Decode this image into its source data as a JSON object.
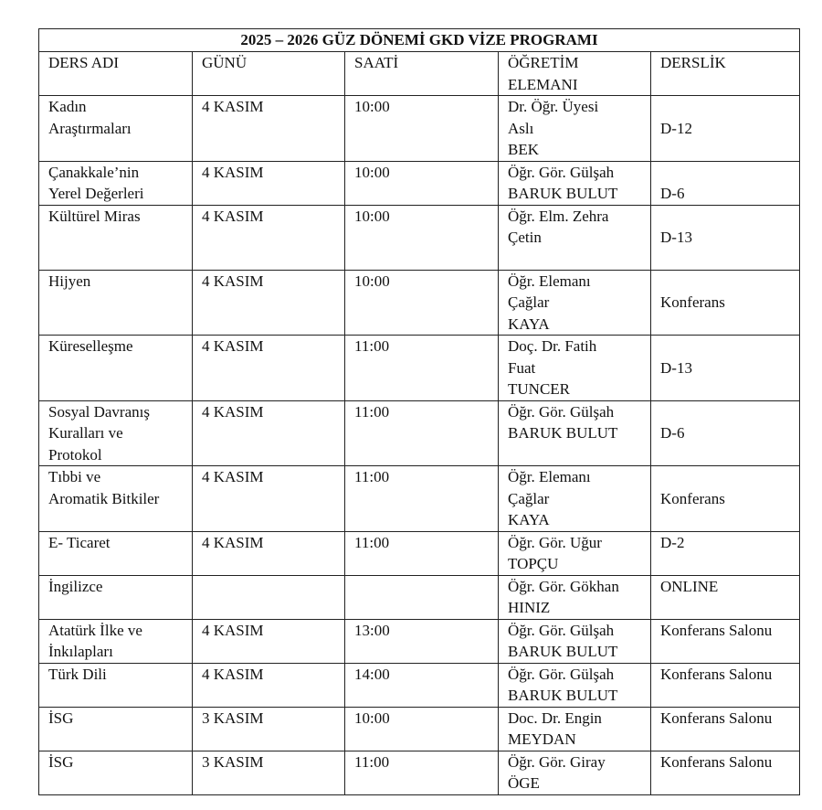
{
  "title": "2025 – 2026 GÜZ DÖNEMİ GKD VİZE PROGRAMI",
  "headers": [
    [
      "DERS ADI"
    ],
    [
      "GÜNÜ"
    ],
    [
      "SAATİ"
    ],
    [
      "ÖĞRETİM",
      "ELEMANI"
    ],
    [
      "DERSLİK"
    ]
  ],
  "rows": [
    {
      "ders": [
        "Kadın",
        "Araştırmaları"
      ],
      "gunu": "4 KASIM",
      "saati": "10:00",
      "ogretim": [
        "Dr. Öğr. Üyesi",
        "Aslı",
        "BEK"
      ],
      "derslik": "D-12"
    },
    {
      "ders": [
        "Çanakkale’nin",
        "Yerel Değerleri"
      ],
      "gunu": "4 KASIM",
      "saati": "10:00",
      "ogretim": [
        "Öğr. Gör. Gülşah",
        "BARUK BULUT"
      ],
      "derslik": "D-6"
    },
    {
      "ders": [
        "Kültürel Miras"
      ],
      "gunu": "4 KASIM",
      "saati": "10:00",
      "ogretim": [
        "Öğr. Elm. Zehra",
        "Çetin"
      ],
      "derslik": "D-13"
    },
    {
      "ders": [
        "Hijyen"
      ],
      "gunu": "4 KASIM",
      "saati": "10:00",
      "ogretim": [
        "Öğr. Elemanı",
        "Çağlar",
        "KAYA"
      ],
      "derslik": "Konferans"
    },
    {
      "ders": [
        "Küreselleşme"
      ],
      "gunu": "4 KASIM",
      "saati": "11:00",
      "ogretim": [
        "Doç. Dr. Fatih",
        "Fuat",
        "TUNCER"
      ],
      "derslik": "D-13"
    },
    {
      "ders": [
        "Sosyal Davranış",
        "Kuralları ve",
        "Protokol"
      ],
      "gunu": "4 KASIM",
      "saati": "11:00",
      "ogretim": [
        "Öğr. Gör. Gülşah",
        "BARUK BULUT"
      ],
      "derslik": "D-6"
    },
    {
      "ders": [
        "Tıbbi ve",
        "Aromatik Bitkiler"
      ],
      "gunu": "4 KASIM",
      "saati": "11:00",
      "ogretim": [
        "Öğr. Elemanı",
        "Çağlar",
        "KAYA"
      ],
      "derslik": "Konferans"
    },
    {
      "ders": [
        "E- Ticaret"
      ],
      "gunu": "4 KASIM",
      "saati": "11:00",
      "ogretim": [
        "Öğr. Gör. Uğur",
        "TOPÇU"
      ],
      "derslik": "D-2"
    },
    {
      "ders": [
        "İngilizce"
      ],
      "gunu": "",
      "saati": "",
      "ogretim": [
        "Öğr. Gör. Gökhan",
        "HINIZ"
      ],
      "derslik": "ONLINE"
    },
    {
      "ders": [
        "Atatürk İlke ve",
        "İnkılapları"
      ],
      "gunu": "4 KASIM",
      "saati": "13:00",
      "ogretim": [
        "Öğr. Gör. Gülşah",
        "BARUK BULUT"
      ],
      "derslik": "Konferans Salonu"
    },
    {
      "ders": [
        "Türk Dili"
      ],
      "gunu": "4 KASIM",
      "saati": "14:00",
      "ogretim": [
        "Öğr. Gör. Gülşah",
        "BARUK BULUT"
      ],
      "derslik": "Konferans Salonu"
    },
    {
      "ders": [
        "İSG"
      ],
      "gunu": "3 KASIM",
      "saati": "10:00",
      "ogretim": [
        "Doc. Dr. Engin",
        "MEYDAN"
      ],
      "derslik": "Konferans Salonu"
    },
    {
      "ders": [
        "İSG"
      ],
      "gunu": "3 KASIM",
      "saati": "11:00",
      "ogretim": [
        "Öğr. Gör. Giray",
        "ÖGE"
      ],
      "derslik": "Konferans Salonu"
    }
  ]
}
